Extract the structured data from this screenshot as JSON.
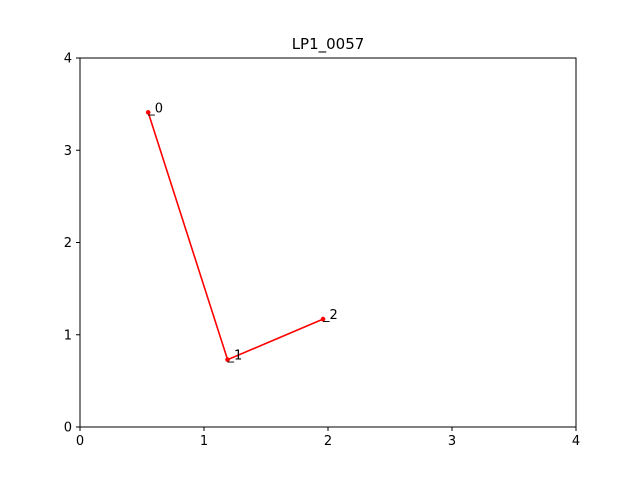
{
  "chart_data": {
    "type": "line",
    "title": "LP1_0057",
    "xlabel": "",
    "ylabel": "",
    "xlim": [
      0,
      4
    ],
    "ylim": [
      0,
      4
    ],
    "x_ticks": [
      "0",
      "1",
      "2",
      "3",
      "4"
    ],
    "y_ticks": [
      "0",
      "1",
      "2",
      "3",
      "4"
    ],
    "grid": false,
    "legend": "none",
    "series": [
      {
        "color": "#ff0000",
        "points": [
          {
            "label": "_0",
            "x": 0.55,
            "y": 3.41
          },
          {
            "label": "_1",
            "x": 1.19,
            "y": 0.73
          },
          {
            "label": "_2",
            "x": 1.96,
            "y": 1.17
          }
        ]
      }
    ]
  }
}
